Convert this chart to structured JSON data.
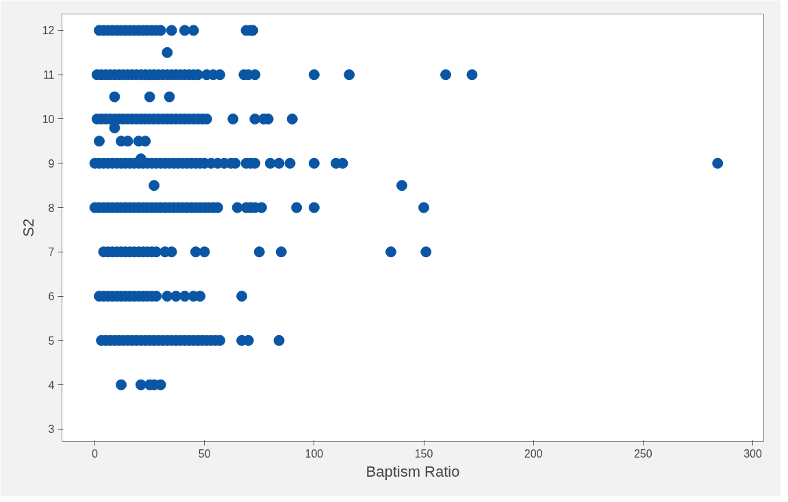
{
  "chart_data": {
    "type": "scatter",
    "xlabel": "Baptism Ratio",
    "ylabel": "S2",
    "xlim": [
      -15,
      305
    ],
    "ylim": [
      2.72,
      12.37
    ],
    "xticks": [
      0,
      50,
      100,
      150,
      200,
      250,
      300
    ],
    "yticks": [
      3,
      4,
      5,
      6,
      7,
      8,
      9,
      10,
      11,
      12
    ],
    "grid": false,
    "marker": "circle",
    "series": [
      {
        "color": "#0b56a4",
        "x": [
          2,
          4,
          6,
          8,
          10,
          12,
          14,
          16,
          18,
          20,
          22,
          24,
          26,
          28,
          30,
          35,
          41,
          45,
          69,
          71,
          72,
          33,
          1,
          3,
          5,
          7,
          9,
          11,
          13,
          15,
          17,
          19,
          21,
          23,
          25,
          27,
          29,
          31,
          33,
          35,
          37,
          39,
          41,
          43,
          45,
          47,
          51,
          54,
          57,
          68,
          70,
          73,
          100,
          116,
          160,
          172,
          9,
          25,
          34,
          1,
          3,
          5,
          7,
          9,
          11,
          13,
          15,
          17,
          19,
          21,
          23,
          25,
          27,
          29,
          31,
          33,
          35,
          37,
          39,
          41,
          43,
          45,
          47,
          49,
          51,
          63,
          73,
          77,
          79,
          90,
          9,
          2,
          12,
          15,
          20,
          23,
          21,
          0,
          2,
          4,
          6,
          8,
          10,
          12,
          14,
          16,
          18,
          20,
          22,
          24,
          26,
          28,
          30,
          32,
          34,
          36,
          38,
          40,
          42,
          44,
          46,
          48,
          50,
          53,
          56,
          59,
          62,
          64,
          69,
          71,
          73,
          80,
          84,
          89,
          100,
          110,
          113,
          284,
          27,
          140,
          0,
          2,
          4,
          6,
          8,
          10,
          12,
          14,
          16,
          18,
          20,
          22,
          24,
          26,
          28,
          30,
          32,
          34,
          36,
          38,
          40,
          42,
          44,
          46,
          48,
          50,
          52,
          54,
          56,
          65,
          69,
          71,
          73,
          76,
          92,
          100,
          150,
          4,
          6,
          8,
          10,
          12,
          14,
          16,
          18,
          20,
          22,
          24,
          26,
          28,
          32,
          35,
          46,
          50,
          75,
          85,
          135,
          151,
          2,
          4,
          6,
          8,
          10,
          12,
          14,
          16,
          18,
          20,
          22,
          24,
          26,
          28,
          33,
          37,
          41,
          45,
          48,
          67,
          3,
          5,
          7,
          9,
          11,
          13,
          15,
          17,
          19,
          21,
          23,
          25,
          27,
          29,
          31,
          33,
          35,
          37,
          39,
          41,
          43,
          45,
          47,
          49,
          51,
          53,
          55,
          57,
          67,
          70,
          84,
          12,
          21,
          25,
          27,
          30
        ],
        "values": [
          12,
          12,
          12,
          12,
          12,
          12,
          12,
          12,
          12,
          12,
          12,
          12,
          12,
          12,
          12,
          12,
          12,
          12,
          12,
          12,
          12,
          11.5,
          11,
          11,
          11,
          11,
          11,
          11,
          11,
          11,
          11,
          11,
          11,
          11,
          11,
          11,
          11,
          11,
          11,
          11,
          11,
          11,
          11,
          11,
          11,
          11,
          11,
          11,
          11,
          11,
          11,
          11,
          11,
          11,
          11,
          11,
          10.5,
          10.5,
          10.5,
          10,
          10,
          10,
          10,
          10,
          10,
          10,
          10,
          10,
          10,
          10,
          10,
          10,
          10,
          10,
          10,
          10,
          10,
          10,
          10,
          10,
          10,
          10,
          10,
          10,
          10,
          10,
          10,
          10,
          10,
          10,
          9.8,
          9.5,
          9.5,
          9.5,
          9.5,
          9.5,
          9.1,
          9,
          9,
          9,
          9,
          9,
          9,
          9,
          9,
          9,
          9,
          9,
          9,
          9,
          9,
          9,
          9,
          9,
          9,
          9,
          9,
          9,
          9,
          9,
          9,
          9,
          9,
          9,
          9,
          9,
          9,
          9,
          9,
          9,
          9,
          9,
          9,
          9,
          9,
          9,
          9,
          9,
          8.5,
          8.5,
          8,
          8,
          8,
          8,
          8,
          8,
          8,
          8,
          8,
          8,
          8,
          8,
          8,
          8,
          8,
          8,
          8,
          8,
          8,
          8,
          8,
          8,
          8,
          8,
          8,
          8,
          8,
          8,
          8,
          8,
          8,
          8,
          8,
          8,
          8,
          8,
          8,
          7,
          7,
          7,
          7,
          7,
          7,
          7,
          7,
          7,
          7,
          7,
          7,
          7,
          7,
          7,
          7,
          7,
          7,
          7,
          7,
          7,
          6,
          6,
          6,
          6,
          6,
          6,
          6,
          6,
          6,
          6,
          6,
          6,
          6,
          6,
          6,
          6,
          6,
          6,
          6,
          6,
          5,
          5,
          5,
          5,
          5,
          5,
          5,
          5,
          5,
          5,
          5,
          5,
          5,
          5,
          5,
          5,
          5,
          5,
          5,
          5,
          5,
          5,
          5,
          5,
          5,
          5,
          5,
          5,
          5,
          5,
          5,
          4,
          4,
          4,
          4,
          4
        ]
      }
    ]
  }
}
